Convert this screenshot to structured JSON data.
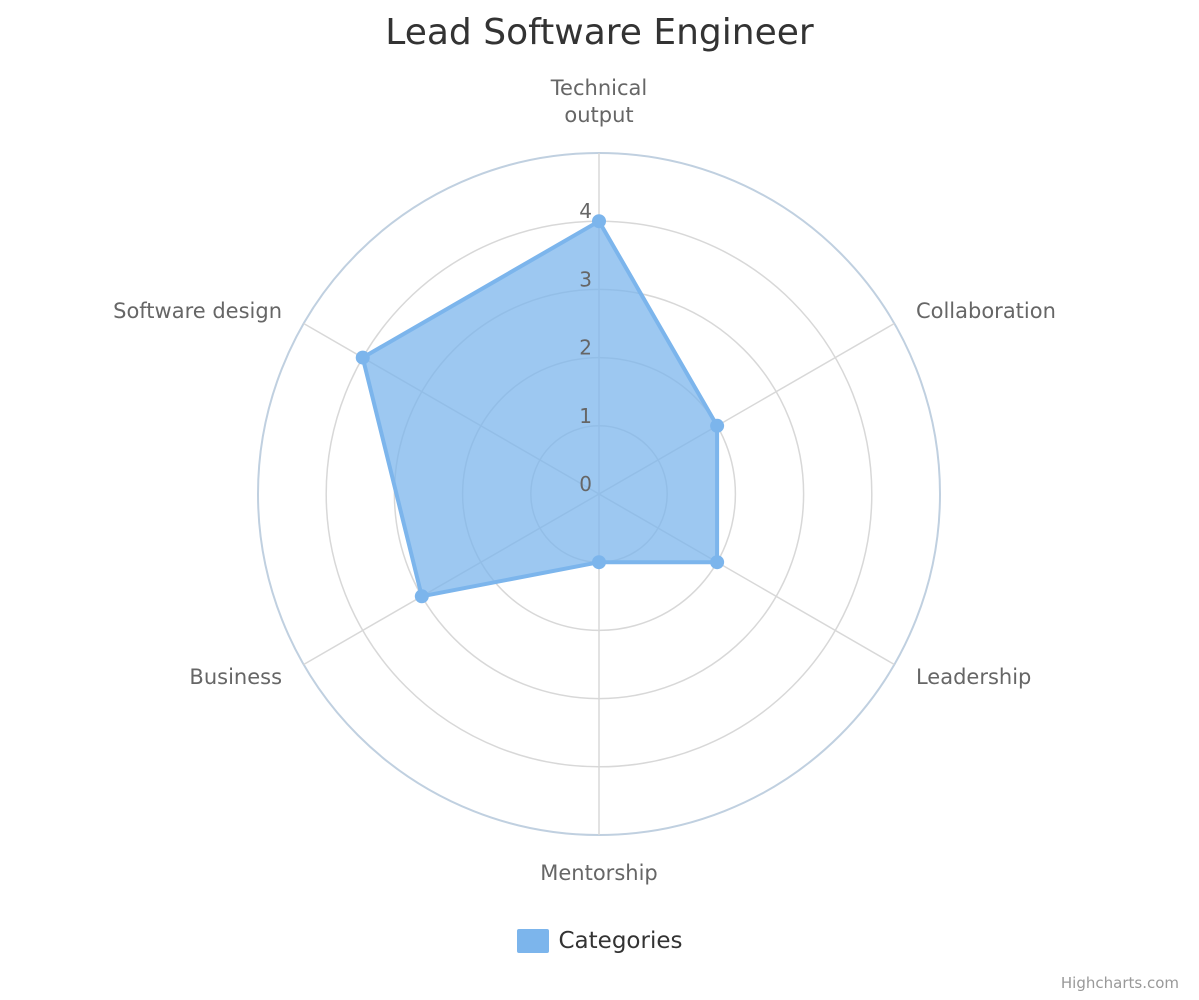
{
  "chart_data": {
    "type": "radar",
    "title": "Lead Software Engineer",
    "categories": [
      "Technical output",
      "Collaboration",
      "Leadership",
      "Mentorship",
      "Business",
      "Software design"
    ],
    "category_lines": [
      [
        "Technical",
        "output"
      ],
      [
        "Collaboration"
      ],
      [
        "Leadership"
      ],
      [
        "Mentorship"
      ],
      [
        "Business"
      ],
      [
        "Software design"
      ]
    ],
    "y_ticks": [
      "0",
      "1",
      "2",
      "3",
      "4"
    ],
    "ylim": [
      0,
      5
    ],
    "series": [
      {
        "name": "Categories",
        "values": [
          4,
          2,
          2,
          1,
          3,
          4
        ],
        "color": "#7cb5ec"
      }
    ],
    "grid": true,
    "legend_position": "bottom"
  },
  "credits": "Highcharts.com",
  "colors": {
    "series": "#7cb5ec",
    "grid": "#d8d8d8",
    "outer_ring": "#c0d0e0",
    "text": "#666666",
    "title": "#333333"
  }
}
